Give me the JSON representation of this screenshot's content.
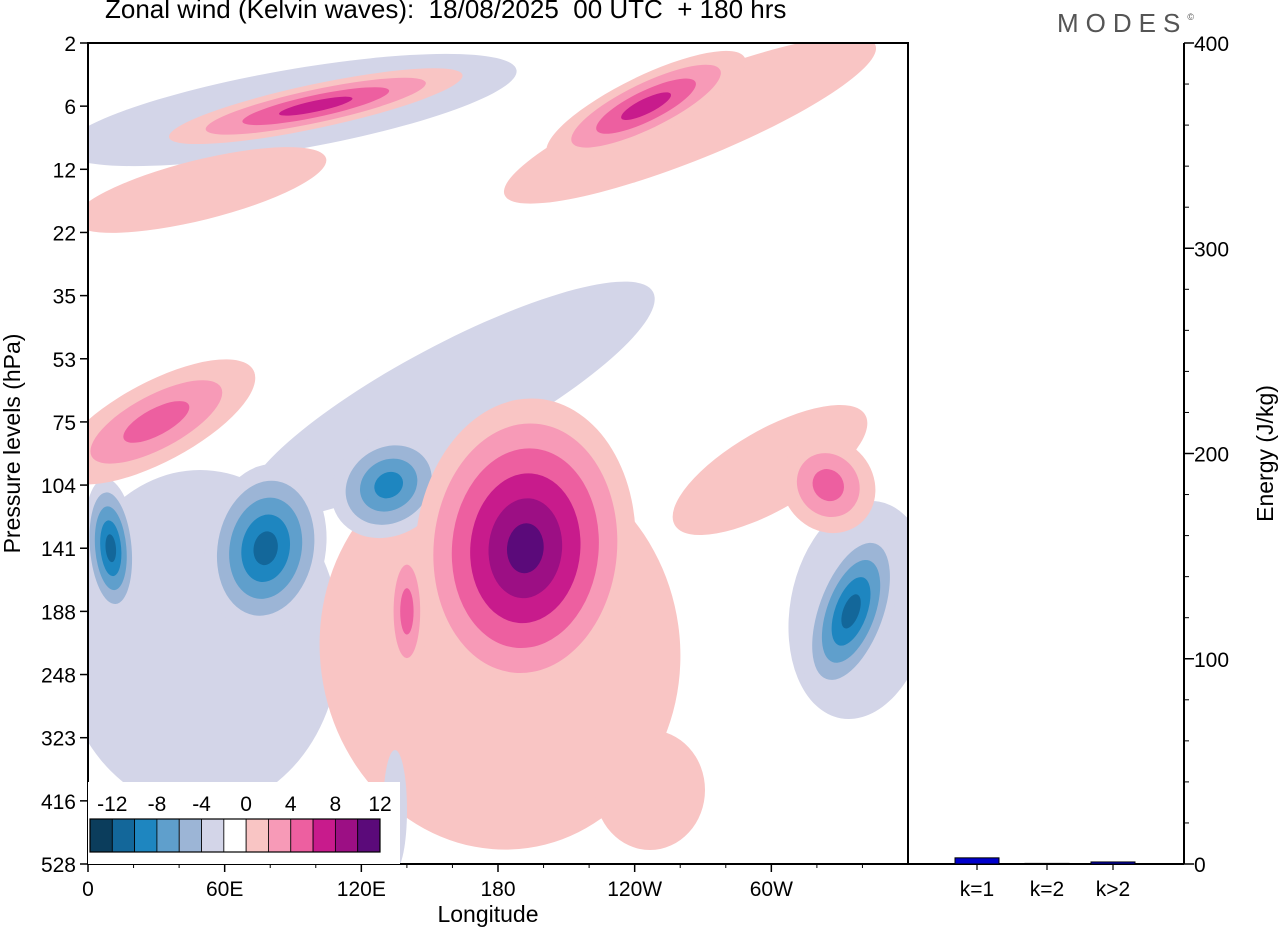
{
  "header": {
    "title": "Zonal wind (Kelvin waves):  18/08/2025  00 UTC  + 180 hrs",
    "brand": "MODES",
    "brand_mark": "©"
  },
  "chart_data": [
    {
      "type": "heatmap",
      "title": "Zonal wind (Kelvin waves):  18/08/2025  00 UTC  + 180 hrs",
      "xlabel": "Longitude",
      "ylabel": "Pressure levels (hPa)",
      "x_ticks": [
        "0",
        "60E",
        "120E",
        "180",
        "120W",
        "60W"
      ],
      "y_ticks": [
        "2",
        "6",
        "12",
        "22",
        "35",
        "53",
        "75",
        "104",
        "141",
        "188",
        "248",
        "323",
        "416",
        "528"
      ],
      "colorbar": {
        "labels": [
          "-12",
          "-8",
          "-4",
          "0",
          "4",
          "8",
          "12"
        ],
        "levels": [
          -14,
          -12,
          -10,
          -8,
          -6,
          -4,
          -2,
          2,
          4,
          6,
          8,
          10,
          12,
          14
        ],
        "colors": [
          "#0b3d5c",
          "#13679a",
          "#1e86c0",
          "#5f9fcc",
          "#9cb5d6",
          "#d3d5e8",
          "#ffffff",
          "#f9c5c4",
          "#f79ab7",
          "#ed5fa0",
          "#c81b8c",
          "#9c0f84",
          "#5b0a7a"
        ]
      },
      "features": [
        {
          "sign": "negative",
          "lon": 10,
          "level": "141",
          "peak": -10
        },
        {
          "sign": "negative",
          "lon": 78,
          "level": "141",
          "peak": -10
        },
        {
          "sign": "negative",
          "lon": 132,
          "level": "104",
          "peak": -8
        },
        {
          "sign": "negative",
          "lon": 335,
          "level": "188",
          "peak": -10
        },
        {
          "sign": "positive",
          "lon": 192,
          "level": "141",
          "peak": 12
        },
        {
          "sign": "positive",
          "lon": 140,
          "level": "188",
          "peak": 6
        },
        {
          "sign": "positive",
          "lon": 30,
          "level": "75",
          "peak": 6
        },
        {
          "sign": "positive",
          "lon": 100,
          "level": "6",
          "peak": 8
        },
        {
          "sign": "positive",
          "lon": 245,
          "level": "6",
          "peak": 8
        },
        {
          "sign": "positive",
          "lon": 325,
          "level": "104",
          "peak": 6
        }
      ]
    },
    {
      "type": "bar",
      "ylabel": "Energy (J/kg)",
      "categories": [
        "k=1",
        "k=2",
        "k>2"
      ],
      "values": [
        3,
        0.3,
        1
      ],
      "ylim": [
        0,
        400
      ],
      "y_ticks": [
        "0",
        "100",
        "200",
        "300",
        "400"
      ],
      "bar_color": "#0000cc"
    }
  ]
}
